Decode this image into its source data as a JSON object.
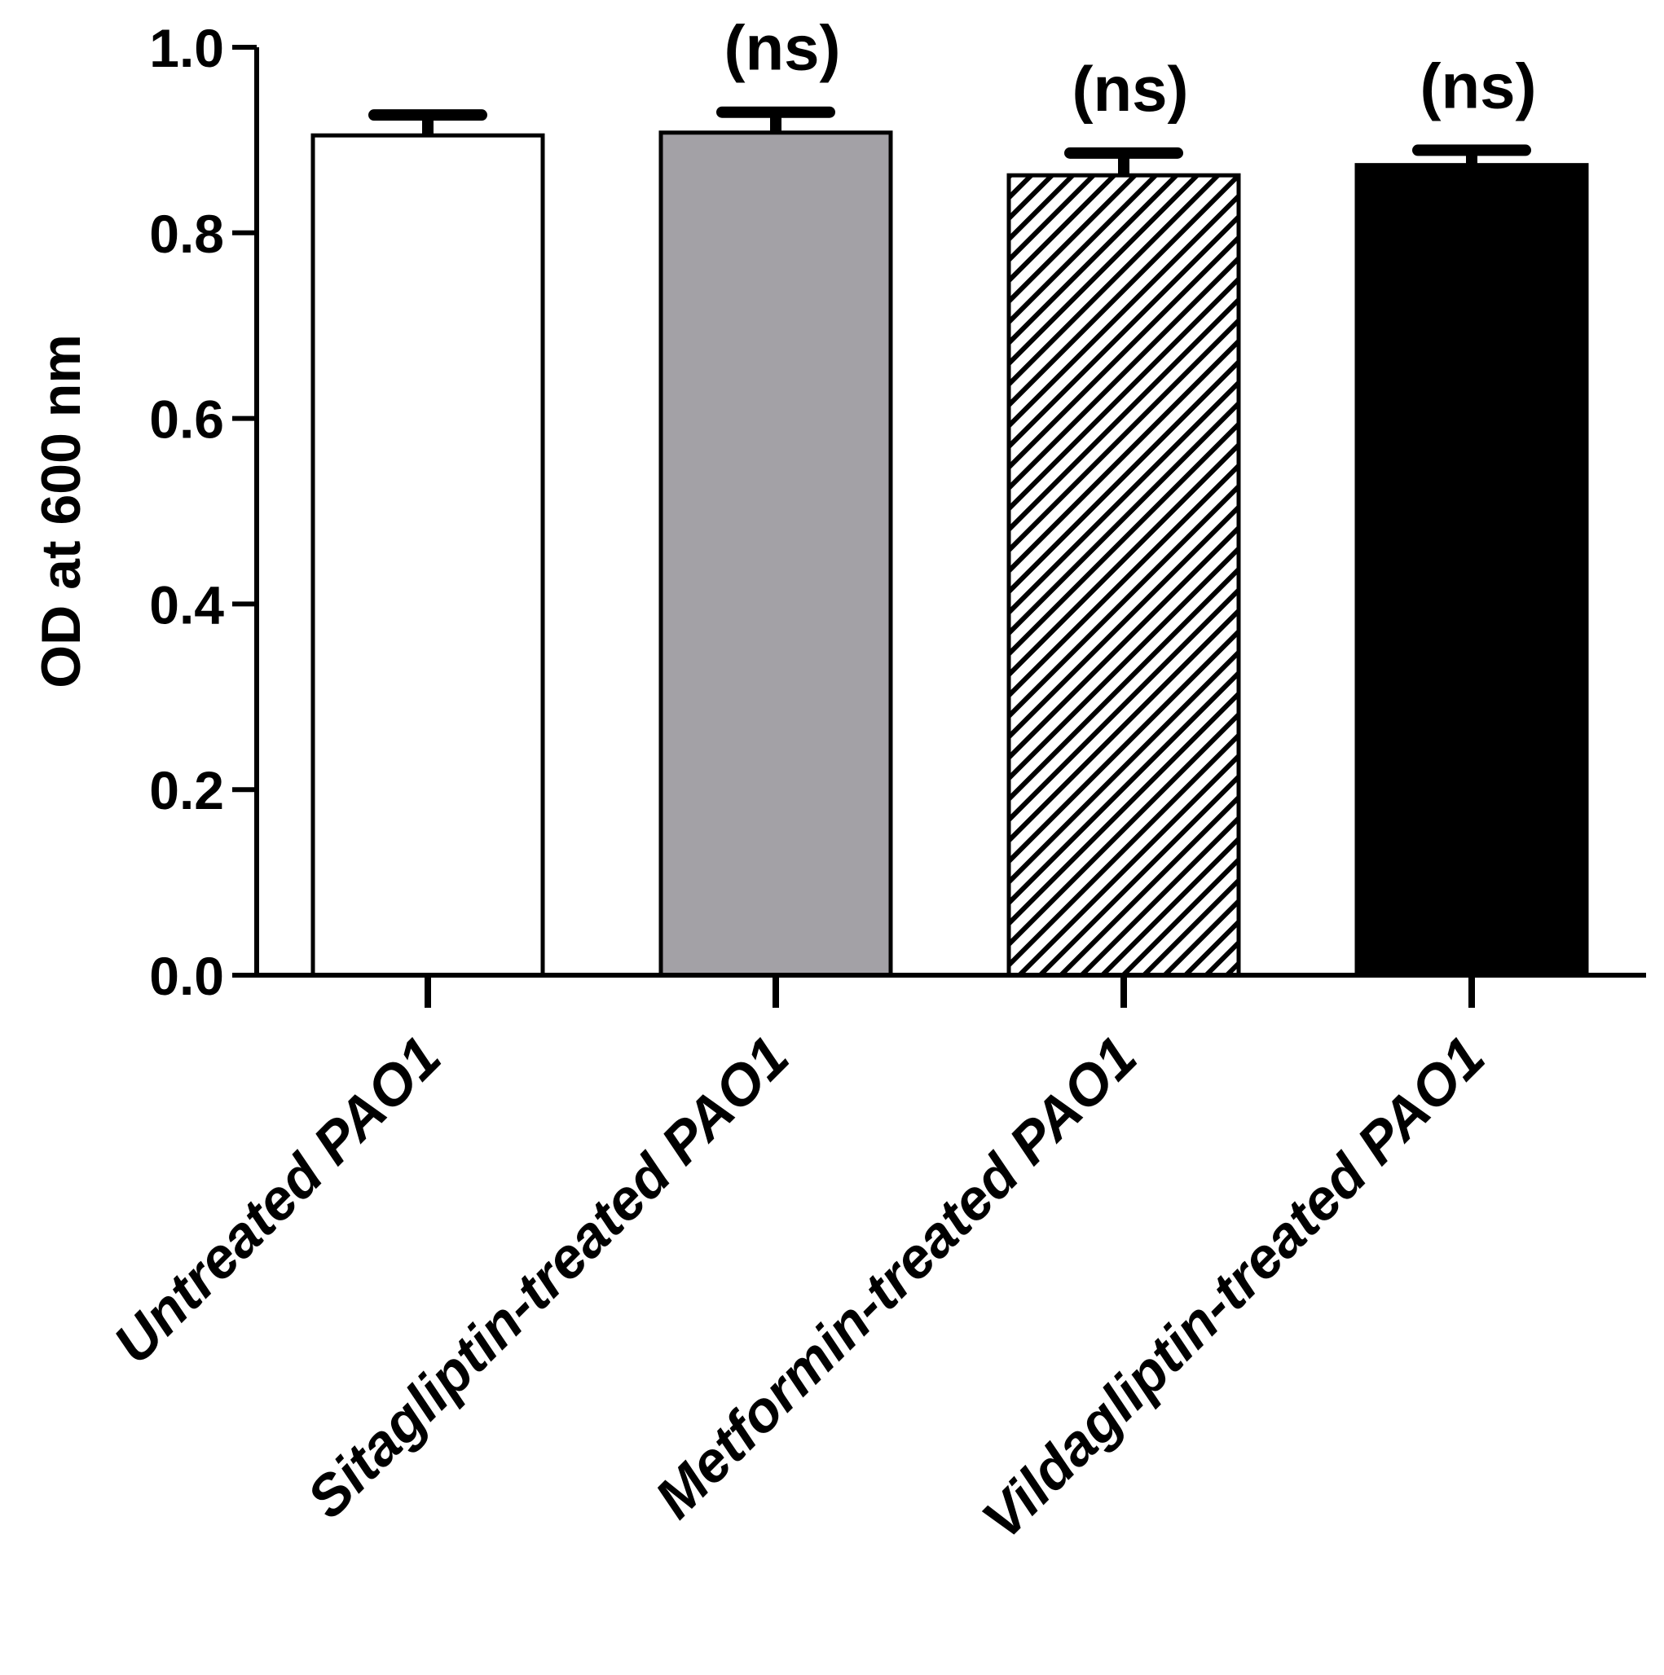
{
  "chart_data": {
    "type": "bar",
    "title": "",
    "xlabel": "",
    "ylabel": "OD at 600 nm",
    "ylim": [
      0,
      1.0
    ],
    "yticks": [
      0.0,
      0.2,
      0.4,
      0.6,
      0.8,
      1.0
    ],
    "ytick_labels": [
      "0.0",
      "0.2",
      "0.4",
      "0.6",
      "0.8",
      "1.0"
    ],
    "categories": [
      "Untreated PAO1",
      "Sitagliptin-treated PAO1",
      "Metformin-treated PAO1",
      "Vildagliptin-treated PAO1"
    ],
    "values": [
      0.905,
      0.908,
      0.862,
      0.873
    ],
    "errors": [
      0.022,
      0.022,
      0.024,
      0.016
    ],
    "annotations": [
      "",
      "(ns)",
      "(ns)",
      "(ns)"
    ],
    "fills": [
      "white",
      "gray",
      "hatched",
      "black"
    ],
    "colors": {
      "white": "#ffffff",
      "gray": "#a3a1a6",
      "black": "#000000",
      "axis": "#000000"
    },
    "grid": false,
    "legend": "none"
  }
}
